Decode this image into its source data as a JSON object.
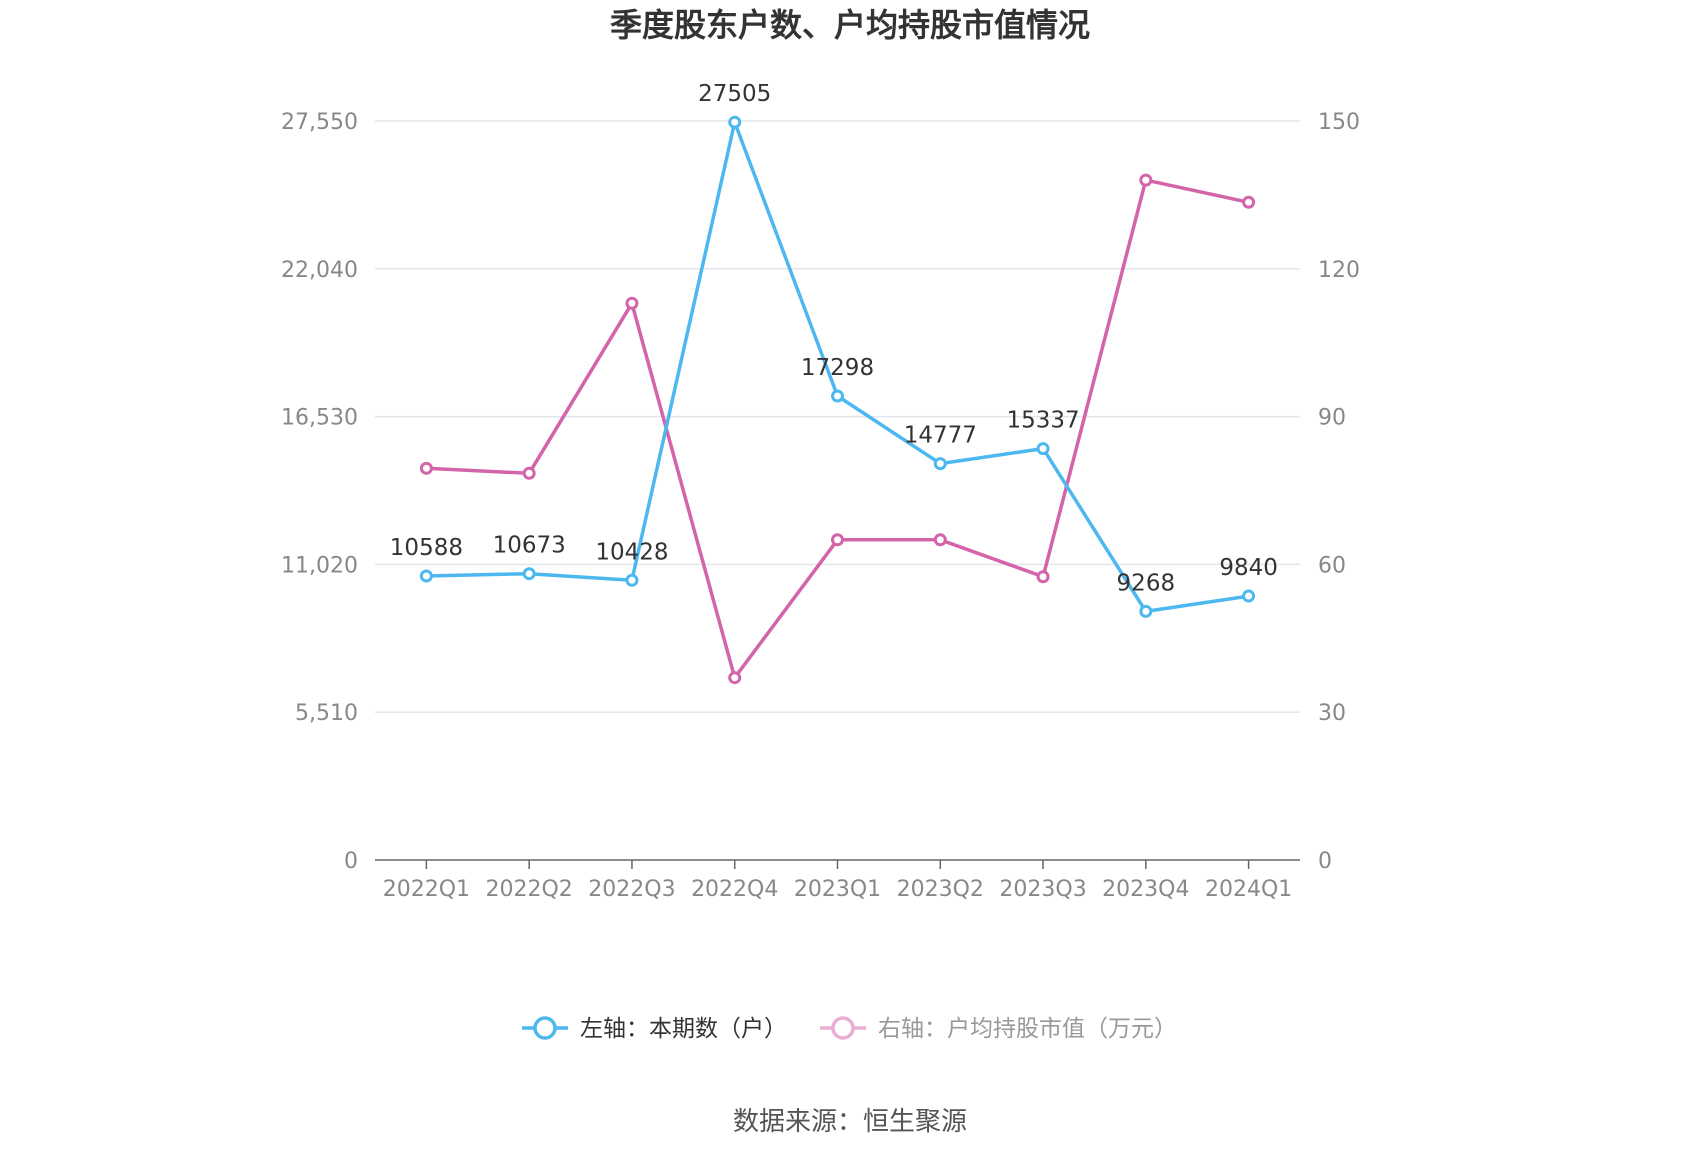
{
  "chart_data": {
    "type": "line",
    "title": "季度股东户数、户均持股市值情况",
    "categories": [
      "2022Q1",
      "2022Q2",
      "2022Q3",
      "2022Q4",
      "2023Q1",
      "2023Q2",
      "2023Q3",
      "2023Q4",
      "2024Q1"
    ],
    "left_axis": {
      "ticks": [
        "0",
        "5,510",
        "11,020",
        "16,530",
        "22,040",
        "27,550"
      ],
      "min": 0,
      "max": 27550
    },
    "right_axis": {
      "ticks": [
        "0",
        "30",
        "60",
        "90",
        "120",
        "150"
      ],
      "min": 0,
      "max": 150
    },
    "series": [
      {
        "name": "左轴：本期数（户）",
        "axis": "left",
        "color": "#4db8ef",
        "values": [
          10588,
          10673,
          10428,
          27505,
          17298,
          14777,
          15337,
          9268,
          9840
        ],
        "labels": [
          "10588",
          "10673",
          "10428",
          "27505",
          "17298",
          "14777",
          "15337",
          "9268",
          "9840"
        ]
      },
      {
        "name": "右轴：户均持股市值（万元）",
        "axis": "right",
        "color": "#d464a9",
        "values": [
          79.5,
          78.5,
          113,
          37,
          65,
          65,
          57.5,
          138,
          133.5
        ]
      }
    ],
    "legend_position": "bottom",
    "grid": true,
    "source": "数据来源：恒生聚源"
  }
}
